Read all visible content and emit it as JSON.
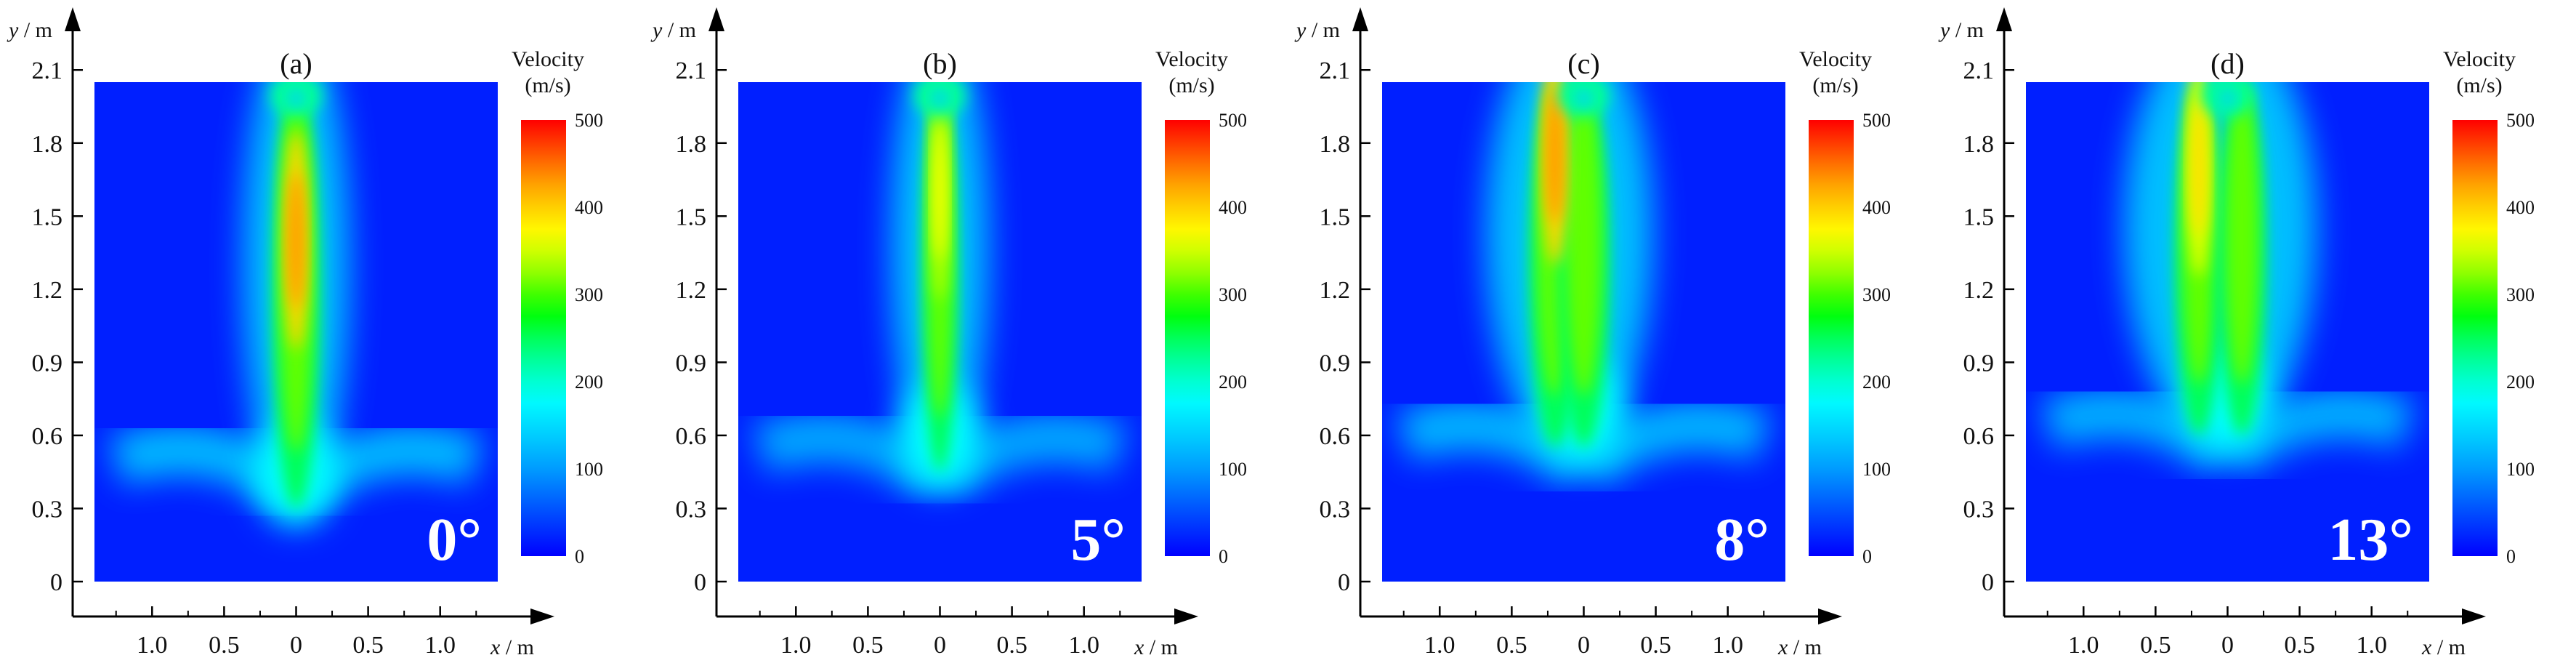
{
  "chart_data": {
    "type": "heatmap",
    "colorbar": {
      "title_line1": "Velocity",
      "title_line2": "(m/s)",
      "range": [
        0,
        500
      ],
      "ticks": [
        "0",
        "100",
        "200",
        "300",
        "400",
        "500"
      ],
      "colors": [
        "#0000ff",
        "#0080ff",
        "#00ffff",
        "#00ff80",
        "#00ff00",
        "#80ff00",
        "#ffff00",
        "#ffbf00",
        "#ff8000",
        "#ff4000",
        "#ff0000"
      ]
    },
    "x_axis": {
      "label_var": "x",
      "label_unit": " / m",
      "ticks": [
        "1.0",
        "0.5",
        "0",
        "0.5",
        "1.0"
      ]
    },
    "y_axis": {
      "label_var": "y",
      "label_unit": " / m",
      "ticks": [
        "0",
        "0.3",
        "0.6",
        "0.9",
        "1.2",
        "1.5",
        "1.8",
        "2.1"
      ],
      "range": [
        0,
        2.1
      ]
    },
    "panels": [
      {
        "label": "(a)",
        "angle": "0°",
        "core": {
          "peak_velocity": 430,
          "peak_y": 1.4,
          "base_y": 0.3,
          "half_width": 0.12,
          "lean": 0.0,
          "split": 0.0
        },
        "wings": {
          "velocity": 170,
          "y": 0.45
        }
      },
      {
        "label": "(b)",
        "angle": "5°",
        "core": {
          "peak_velocity": 370,
          "peak_y": 1.6,
          "base_y": 0.45,
          "half_width": 0.09,
          "lean": 0.0,
          "split": 0.0
        },
        "wings": {
          "velocity": 150,
          "y": 0.5
        }
      },
      {
        "label": "(c)",
        "angle": "8°",
        "core": {
          "peak_velocity": 430,
          "peak_y": 1.75,
          "base_y": 0.55,
          "half_width": 0.13,
          "lean": -0.1,
          "split": 0.2
        },
        "wings": {
          "velocity": 165,
          "y": 0.55
        }
      },
      {
        "label": "(d)",
        "angle": "13°",
        "core": {
          "peak_velocity": 390,
          "peak_y": 1.7,
          "base_y": 0.6,
          "half_width": 0.12,
          "lean": -0.05,
          "split": 0.3
        },
        "wings": {
          "velocity": 160,
          "y": 0.6
        }
      }
    ]
  }
}
